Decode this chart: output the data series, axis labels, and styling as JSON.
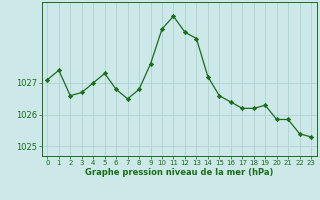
{
  "x": [
    0,
    1,
    2,
    3,
    4,
    5,
    6,
    7,
    8,
    9,
    10,
    11,
    12,
    13,
    14,
    15,
    16,
    17,
    18,
    19,
    20,
    21,
    22,
    23
  ],
  "y": [
    1027.1,
    1027.4,
    1026.6,
    1026.7,
    1027.0,
    1027.3,
    1026.8,
    1026.5,
    1026.8,
    1027.6,
    1028.7,
    1029.1,
    1028.6,
    1028.4,
    1027.2,
    1026.6,
    1026.4,
    1026.2,
    1026.2,
    1026.3,
    1025.85,
    1025.85,
    1025.4,
    1025.3
  ],
  "line_color": "#1a6e1a",
  "marker_color": "#1a6e1a",
  "bg_color": "#cce8e8",
  "grid_color": "#aacece",
  "axis_color": "#1a6e1a",
  "xlabel": "Graphe pression niveau de la mer (hPa)",
  "yticks": [
    1025,
    1026,
    1027
  ],
  "ylim": [
    1024.7,
    1029.55
  ],
  "xlim": [
    -0.5,
    23.5
  ],
  "tick_label_color": "#1a6e1a",
  "xlabel_color": "#1a6e1a",
  "xlabel_fontsize": 6.0,
  "xtick_fontsize": 5.0,
  "ytick_fontsize": 6.0,
  "linewidth": 0.9,
  "markersize": 2.2
}
